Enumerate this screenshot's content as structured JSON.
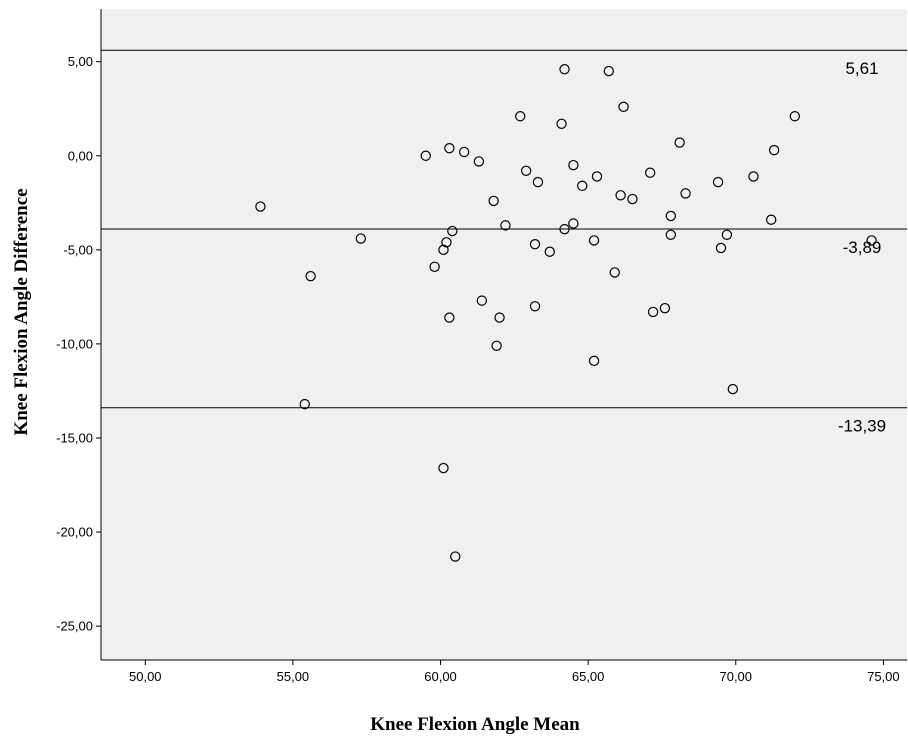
{
  "chart_data": {
    "type": "scatter",
    "xlabel": "Knee Flexion Angle Mean",
    "ylabel": "Knee Flexion Angle Difference",
    "xlim": [
      48.5,
      75.8
    ],
    "ylim": [
      -26.8,
      7.8
    ],
    "x_ticks": [
      50,
      55,
      60,
      65,
      70,
      75
    ],
    "x_tick_labels": [
      "50,00",
      "55,00",
      "60,00",
      "65,00",
      "70,00",
      "75,00"
    ],
    "y_ticks": [
      5,
      0,
      -5,
      -10,
      -15,
      -20,
      -25
    ],
    "y_tick_labels": [
      "5,00",
      "0,00",
      "-5,00",
      "-10,00",
      "-15,00",
      "-20,00",
      "-25,00"
    ],
    "grid": false,
    "reference_lines": [
      {
        "value": 5.61,
        "label": "5,61"
      },
      {
        "value": -3.89,
        "label": "-3,89"
      },
      {
        "value": -13.39,
        "label": "-13,39"
      }
    ],
    "points": [
      {
        "x": 53.9,
        "y": -2.7
      },
      {
        "x": 55.4,
        "y": -13.2
      },
      {
        "x": 55.6,
        "y": -6.4
      },
      {
        "x": 57.3,
        "y": -4.4
      },
      {
        "x": 59.5,
        "y": 0.0
      },
      {
        "x": 59.8,
        "y": -5.9
      },
      {
        "x": 60.1,
        "y": -16.6
      },
      {
        "x": 60.1,
        "y": -5.0
      },
      {
        "x": 60.2,
        "y": -4.6
      },
      {
        "x": 60.3,
        "y": -8.6
      },
      {
        "x": 60.3,
        "y": 0.4
      },
      {
        "x": 60.4,
        "y": -4.0
      },
      {
        "x": 60.5,
        "y": -21.3
      },
      {
        "x": 60.8,
        "y": 0.2
      },
      {
        "x": 61.3,
        "y": -0.3
      },
      {
        "x": 61.4,
        "y": -7.7
      },
      {
        "x": 61.8,
        "y": -2.4
      },
      {
        "x": 61.9,
        "y": -10.1
      },
      {
        "x": 62.0,
        "y": -8.6
      },
      {
        "x": 62.2,
        "y": -3.7
      },
      {
        "x": 62.7,
        "y": 2.1
      },
      {
        "x": 62.9,
        "y": -0.8
      },
      {
        "x": 63.2,
        "y": -4.7
      },
      {
        "x": 63.2,
        "y": -8.0
      },
      {
        "x": 63.3,
        "y": -1.4
      },
      {
        "x": 63.7,
        "y": -5.1
      },
      {
        "x": 64.1,
        "y": 1.7
      },
      {
        "x": 64.2,
        "y": 4.6
      },
      {
        "x": 64.2,
        "y": -3.9
      },
      {
        "x": 64.5,
        "y": -0.5
      },
      {
        "x": 64.5,
        "y": -3.6
      },
      {
        "x": 64.8,
        "y": -1.6
      },
      {
        "x": 65.2,
        "y": -4.5
      },
      {
        "x": 65.2,
        "y": -10.9
      },
      {
        "x": 65.3,
        "y": -1.1
      },
      {
        "x": 65.7,
        "y": 4.5
      },
      {
        "x": 65.9,
        "y": -6.2
      },
      {
        "x": 66.1,
        "y": -2.1
      },
      {
        "x": 66.2,
        "y": 2.6
      },
      {
        "x": 66.5,
        "y": -2.3
      },
      {
        "x": 67.1,
        "y": -0.9
      },
      {
        "x": 67.2,
        "y": -8.3
      },
      {
        "x": 67.6,
        "y": -8.1
      },
      {
        "x": 67.8,
        "y": -3.2
      },
      {
        "x": 67.8,
        "y": -4.2
      },
      {
        "x": 68.1,
        "y": 0.7
      },
      {
        "x": 68.3,
        "y": -2.0
      },
      {
        "x": 69.4,
        "y": -1.4
      },
      {
        "x": 69.5,
        "y": -4.9
      },
      {
        "x": 69.7,
        "y": -4.2
      },
      {
        "x": 69.9,
        "y": -12.4
      },
      {
        "x": 70.6,
        "y": -1.1
      },
      {
        "x": 71.2,
        "y": -3.4
      },
      {
        "x": 71.3,
        "y": 0.3
      },
      {
        "x": 72.0,
        "y": 2.1
      },
      {
        "x": 74.6,
        "y": -4.5
      }
    ]
  }
}
